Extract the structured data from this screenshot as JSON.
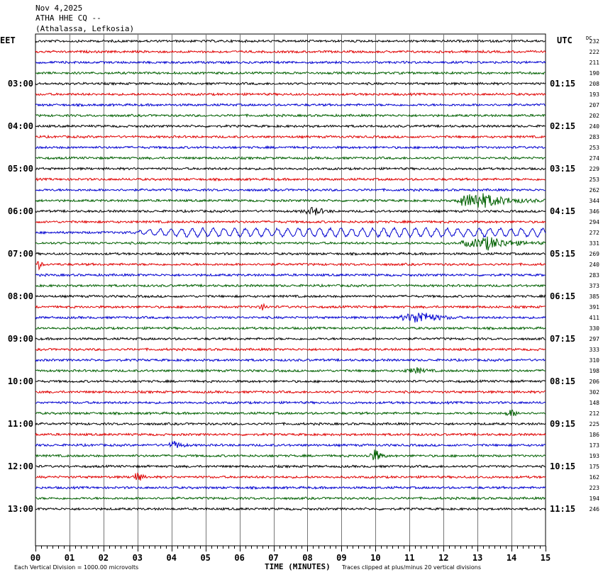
{
  "header": {
    "date": "Nov 4,2025",
    "station": "ATHA HHE CQ --",
    "location": "(Athalassa, Lefkosia)"
  },
  "chart_data": {
    "type": "line",
    "title": "Nov 4,2025",
    "left_timezone_label": "EET",
    "right_timezone_label": "UTC",
    "right_column_header": "DC",
    "xlabel": "TIME (MINUTES)",
    "x_ticks": [
      "00",
      "01",
      "02",
      "03",
      "04",
      "05",
      "06",
      "07",
      "08",
      "09",
      "10",
      "11",
      "12",
      "13",
      "14",
      "15"
    ],
    "xlim": [
      0,
      15
    ],
    "left_time_labels": [
      "03:00",
      "04:00",
      "05:00",
      "06:00",
      "07:00",
      "08:00",
      "09:00",
      "10:00",
      "11:00",
      "12:00",
      "13:00"
    ],
    "right_time_labels": [
      "01:15",
      "02:15",
      "03:15",
      "04:15",
      "05:15",
      "06:15",
      "07:15",
      "08:15",
      "09:15",
      "10:15",
      "11:15"
    ],
    "traces_per_hour": 4,
    "trace_colors": [
      "#000000",
      "#e00000",
      "#0000d0",
      "#006000"
    ],
    "dc_offsets": [
      232,
      222,
      211,
      190,
      208,
      193,
      207,
      202,
      240,
      283,
      253,
      274,
      229,
      253,
      262,
      344,
      346,
      294,
      272,
      331,
      269,
      240,
      283,
      373,
      385,
      391,
      411,
      330,
      297,
      333,
      310,
      198,
      206,
      302,
      148,
      212,
      225,
      186,
      173,
      193,
      175,
      162,
      223,
      194,
      246
    ],
    "events": [
      {
        "trace": 15,
        "start_min": 12.4,
        "end_min": 15,
        "peak_min": 13.0,
        "amplitude": 12
      },
      {
        "trace": 16,
        "start_min": 7.8,
        "end_min": 8.8,
        "peak_min": 8.2,
        "amplitude": 6
      },
      {
        "trace": 18,
        "start_min": 2.5,
        "end_min": 15,
        "peak_min": 9.0,
        "amplitude": 9,
        "kind": "swell"
      },
      {
        "trace": 19,
        "start_min": 12.5,
        "end_min": 15,
        "peak_min": 13.3,
        "amplitude": 9
      },
      {
        "trace": 26,
        "start_min": 10.7,
        "end_min": 12.5,
        "peak_min": 11.3,
        "amplitude": 9
      },
      {
        "trace": 31,
        "start_min": 10.8,
        "end_min": 11.8,
        "peak_min": 11.2,
        "amplitude": 4
      },
      {
        "trace": 35,
        "start_min": 13.8,
        "end_min": 14.4,
        "peak_min": 14.0,
        "amplitude": 5
      },
      {
        "trace": 38,
        "start_min": 3.9,
        "end_min": 4.6,
        "peak_min": 4.1,
        "amplitude": 5
      },
      {
        "trace": 39,
        "start_min": 9.7,
        "end_min": 10.4,
        "peak_min": 10.0,
        "amplitude": 9
      },
      {
        "trace": 41,
        "start_min": 2.8,
        "end_min": 3.3,
        "peak_min": 3.0,
        "amplitude": 8
      },
      {
        "trace": 21,
        "start_min": 0.0,
        "end_min": 0.3,
        "peak_min": 0.1,
        "amplitude": 6
      },
      {
        "trace": 25,
        "start_min": 6.5,
        "end_min": 6.9,
        "peak_min": 6.7,
        "amplitude": 5
      }
    ]
  },
  "footer": {
    "scale_note": "Each Vertical Division = 1000.00 microvolts",
    "clip_note": "Traces clipped at plus/minus 20 vertical divisions"
  }
}
